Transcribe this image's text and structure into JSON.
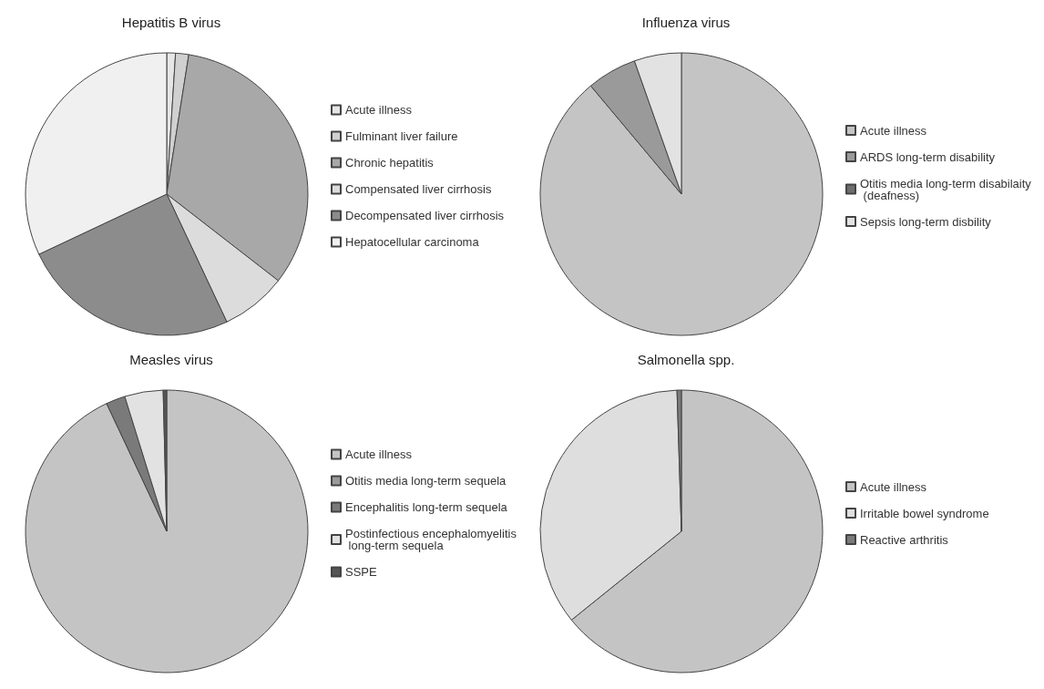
{
  "chart_data": [
    {
      "type": "pie",
      "title": "Hepatitis B virus",
      "legend": "right",
      "categories": [
        "Acute illness",
        "Fulminant liver failure",
        "Chronic hepatitis",
        "Compensated liver cirrhosis",
        "Decompensated liver cirrhosis",
        "Hepatocellular carcinoma"
      ],
      "values": [
        1,
        1.5,
        33,
        7.5,
        25,
        32
      ],
      "colors": [
        "#e6e6e6",
        "#d0d0d0",
        "#a8a8a8",
        "#dcdcdc",
        "#8c8c8c",
        "#f0f0f0"
      ]
    },
    {
      "type": "pie",
      "title": "Influenza virus",
      "legend": "right",
      "categories": [
        "Acute illness",
        "ARDS long-term disability",
        "Otitis media long-term disabilaity (deafness)",
        "Sepsis long-term disbility"
      ],
      "values": [
        88.9,
        5.7,
        null,
        5.4
      ],
      "colors": [
        "#c4c4c4",
        "#9a9a9a",
        "#6e6e6e",
        "#e2e2e2"
      ]
    },
    {
      "type": "pie",
      "title": "Measles virus",
      "legend": "right",
      "categories": [
        "Acute illness",
        "Otitis media long-term sequela",
        "Encephalitis long-term sequela",
        "Postinfectious encephalomyelitis long-term sequela",
        "SSPE"
      ],
      "values": [
        93.0,
        null,
        2.2,
        4.4,
        0.4
      ],
      "colors": [
        "#c4c4c4",
        "#9a9a9a",
        "#7a7a7a",
        "#e2e2e2",
        "#555555"
      ]
    },
    {
      "type": "pie",
      "title": "Salmonella spp.",
      "legend": "right",
      "categories": [
        "Acute illness",
        "Irritable bowel syndrome",
        "Reactive arthritis"
      ],
      "values": [
        64.2,
        35.3,
        0.5
      ],
      "colors": [
        "#c4c4c4",
        "#dedede",
        "#7a7a7a"
      ]
    }
  ]
}
